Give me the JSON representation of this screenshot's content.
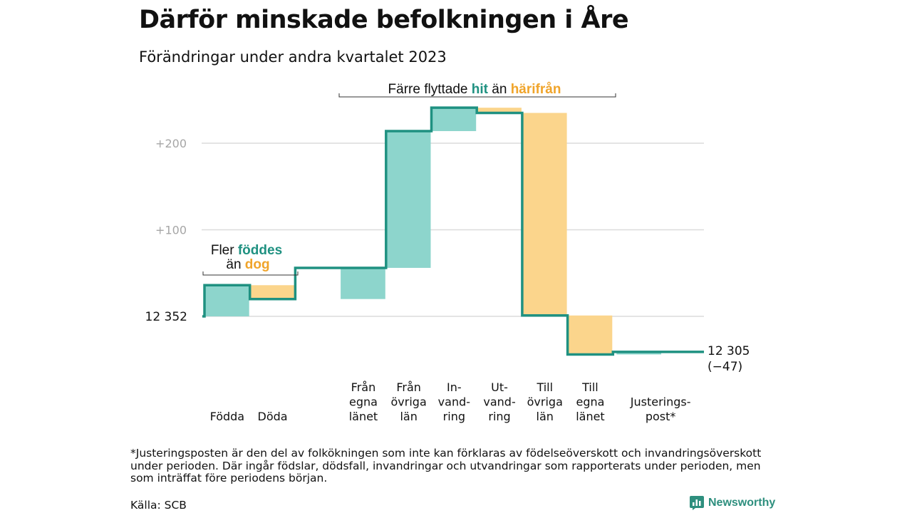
{
  "header": {
    "title": "Därför minskade befolkningen i Åre",
    "subtitle": "Förändringar under andra kvartalet 2023"
  },
  "chart_data": {
    "type": "waterfall",
    "start": {
      "label": "12  352",
      "value": 0
    },
    "end": {
      "label": "12 305",
      "change_label": "(−47)",
      "value": -47
    },
    "y_ticks": [
      {
        "label": "+200",
        "value": 200
      },
      {
        "label": "+100",
        "value": 100
      }
    ],
    "grid": true,
    "steps": [
      {
        "label": [
          "Födda"
        ],
        "change": 36,
        "kind": "in"
      },
      {
        "label": [
          "Döda"
        ],
        "change": -16,
        "kind": "out"
      },
      {
        "label": [
          "Från",
          "egna",
          "länet"
        ],
        "change": 36,
        "kind": "in"
      },
      {
        "label": [
          "Från",
          "övriga",
          "län"
        ],
        "change": 158,
        "kind": "in"
      },
      {
        "label": [
          "In-",
          "vand-",
          "ring"
        ],
        "change": 27,
        "kind": "in"
      },
      {
        "label": [
          "Ut-",
          "vand-",
          "ring"
        ],
        "change": -6,
        "kind": "out"
      },
      {
        "label": [
          "Till",
          "övriga",
          "län"
        ],
        "change": -234,
        "kind": "out"
      },
      {
        "label": [
          "Till",
          "egna",
          "länet"
        ],
        "change": -45,
        "kind": "out"
      },
      {
        "label": [
          "Justerings-",
          "post*"
        ],
        "change": 3,
        "kind": "in"
      }
    ],
    "annotations": {
      "births": {
        "line1_a": "Fler ",
        "line1_b": "föddes",
        "line2_a": "än ",
        "line2_b": "dog"
      },
      "moves": {
        "a": "Färre flyttade ",
        "b": "hit",
        "c": " än ",
        "d": "härifrån"
      }
    },
    "colors": {
      "in": "#8dd5cc",
      "out": "#fbd58c",
      "line": "#1f9181",
      "in_text": "#1f9181",
      "out_text": "#f0a42a",
      "grid": "#dcdcdc"
    }
  },
  "footnote": "*Justeringsposten är den del av folkökningen som inte kan förklaras av födelseöverskott och invandringsöverskott under perioden. Där ingår födslar, dödsfall, invandringar och utvandringar som rapporterats under perioden, men som inträffat före periodens början.",
  "source": "Källa: SCB",
  "brand": {
    "name": "Newsworthy",
    "icon": "bar-chart-logo-icon"
  }
}
